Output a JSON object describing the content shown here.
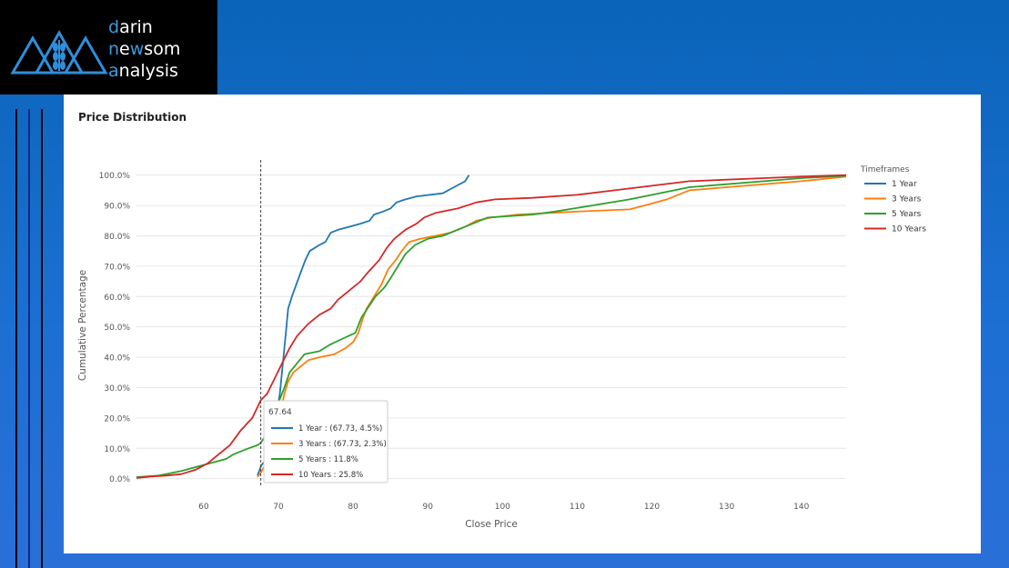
{
  "logo": {
    "lines": [
      {
        "first": "d",
        "rest": "arin"
      },
      {
        "first": "n",
        "rest": "e",
        "mid": "w",
        "tail": "som"
      },
      {
        "first": "a",
        "rest": "nalysis"
      }
    ]
  },
  "card_title": "Price Distribution",
  "chart_data": {
    "type": "line",
    "title": "Price Distribution",
    "xlabel": "Close Price",
    "ylabel": "Cumulative Percentage",
    "xlim": [
      51,
      146
    ],
    "ylim": [
      -1,
      102
    ],
    "x_ticks": [
      60,
      70,
      80,
      90,
      100,
      110,
      120,
      130,
      140
    ],
    "y_ticks": [
      0,
      10,
      20,
      30,
      40,
      50,
      60,
      70,
      80,
      90,
      100
    ],
    "y_tick_labels": [
      "0.0%",
      "10.0%",
      "20.0%",
      "30.0%",
      "40.0%",
      "50.0%",
      "60.0%",
      "70.0%",
      "80.0%",
      "90.0%",
      "100.0%"
    ],
    "grid": true,
    "legend": {
      "title": "Timeframes",
      "position": "right"
    },
    "hover_line_x": 67.64,
    "series": [
      {
        "name": "1 Year",
        "color": "#1f77b4",
        "points": [
          [
            67.2,
            1
          ],
          [
            67.73,
            4.5
          ],
          [
            68.3,
            6
          ],
          [
            68.8,
            10
          ],
          [
            69.3,
            16
          ],
          [
            69.8,
            22
          ],
          [
            70.2,
            28
          ],
          [
            70.6,
            38
          ],
          [
            71.0,
            48
          ],
          [
            71.3,
            56
          ],
          [
            71.8,
            60
          ],
          [
            72.4,
            64
          ],
          [
            73.0,
            68
          ],
          [
            73.6,
            72
          ],
          [
            74.2,
            75
          ],
          [
            75.5,
            77
          ],
          [
            76.3,
            78
          ],
          [
            77.0,
            81
          ],
          [
            78.0,
            82
          ],
          [
            79.5,
            83
          ],
          [
            81.0,
            84
          ],
          [
            82.2,
            85
          ],
          [
            82.8,
            87
          ],
          [
            84.0,
            88
          ],
          [
            85.0,
            89
          ],
          [
            85.8,
            91
          ],
          [
            87.0,
            92
          ],
          [
            88.5,
            93
          ],
          [
            92.0,
            94
          ],
          [
            93.5,
            96
          ],
          [
            95.0,
            98
          ],
          [
            95.5,
            100
          ]
        ]
      },
      {
        "name": "3 Years",
        "color": "#ff7f0e",
        "points": [
          [
            67.2,
            0.5
          ],
          [
            67.73,
            2.3
          ],
          [
            68.3,
            5
          ],
          [
            69.0,
            10
          ],
          [
            69.8,
            15
          ],
          [
            70.3,
            22
          ],
          [
            70.8,
            28
          ],
          [
            71.3,
            32
          ],
          [
            72.0,
            35
          ],
          [
            73.0,
            37
          ],
          [
            74.0,
            39
          ],
          [
            75.5,
            40
          ],
          [
            77.5,
            41
          ],
          [
            79.0,
            43
          ],
          [
            80.0,
            45
          ],
          [
            80.7,
            48
          ],
          [
            81.2,
            52
          ],
          [
            81.8,
            56
          ],
          [
            82.8,
            60
          ],
          [
            83.8,
            64
          ],
          [
            84.7,
            69
          ],
          [
            85.7,
            72
          ],
          [
            86.5,
            75
          ],
          [
            87.5,
            78
          ],
          [
            89.0,
            79
          ],
          [
            91.0,
            80
          ],
          [
            93.0,
            81
          ],
          [
            95.0,
            83
          ],
          [
            96.5,
            85
          ],
          [
            98.5,
            86
          ],
          [
            102,
            87
          ],
          [
            110,
            88
          ],
          [
            117,
            88.7
          ],
          [
            119,
            90
          ],
          [
            122,
            92
          ],
          [
            125,
            95
          ],
          [
            130,
            96
          ],
          [
            135,
            97
          ],
          [
            140,
            98
          ],
          [
            146,
            99.5
          ]
        ]
      },
      {
        "name": "5 Years",
        "color": "#2ca02c",
        "points": [
          [
            51,
            0.5
          ],
          [
            54,
            1
          ],
          [
            57,
            2.5
          ],
          [
            60,
            4.5
          ],
          [
            63,
            6.5
          ],
          [
            64,
            8
          ],
          [
            66,
            10
          ],
          [
            67.2,
            11
          ],
          [
            67.64,
            11.8
          ],
          [
            68.5,
            15
          ],
          [
            69.3,
            20
          ],
          [
            70.0,
            25
          ],
          [
            70.8,
            30
          ],
          [
            71.5,
            35
          ],
          [
            72.5,
            38
          ],
          [
            73.5,
            41
          ],
          [
            75.5,
            42
          ],
          [
            76.8,
            44
          ],
          [
            78.5,
            46
          ],
          [
            80.3,
            48
          ],
          [
            81.1,
            53
          ],
          [
            81.9,
            56
          ],
          [
            83.0,
            60
          ],
          [
            84.2,
            63
          ],
          [
            85.0,
            66
          ],
          [
            86.0,
            70
          ],
          [
            87.0,
            74
          ],
          [
            88.3,
            77
          ],
          [
            90.0,
            79
          ],
          [
            92.0,
            80
          ],
          [
            94.0,
            82
          ],
          [
            96.0,
            84
          ],
          [
            98.0,
            86
          ],
          [
            104,
            87
          ],
          [
            107,
            88
          ],
          [
            112,
            90
          ],
          [
            117,
            92
          ],
          [
            121,
            94
          ],
          [
            125,
            96
          ],
          [
            130,
            97
          ],
          [
            135,
            98
          ],
          [
            140,
            99
          ],
          [
            146,
            99.8
          ]
        ]
      },
      {
        "name": "10 Years",
        "color": "#d62728",
        "points": [
          [
            51,
            0.2
          ],
          [
            53,
            0.7
          ],
          [
            55,
            1
          ],
          [
            57,
            1.5
          ],
          [
            59,
            3
          ],
          [
            60.5,
            5
          ],
          [
            62,
            8
          ],
          [
            63.5,
            11
          ],
          [
            65,
            16
          ],
          [
            66.5,
            20
          ],
          [
            67.64,
            25.8
          ],
          [
            68.5,
            28
          ],
          [
            69.5,
            33
          ],
          [
            70.5,
            38
          ],
          [
            71.5,
            43
          ],
          [
            72.5,
            47
          ],
          [
            74.0,
            51
          ],
          [
            75.5,
            54
          ],
          [
            77.0,
            56
          ],
          [
            78.0,
            59
          ],
          [
            79.5,
            62
          ],
          [
            81.0,
            65
          ],
          [
            82.0,
            68
          ],
          [
            83.5,
            72
          ],
          [
            84.5,
            76
          ],
          [
            85.5,
            79
          ],
          [
            87.0,
            82
          ],
          [
            88.5,
            84
          ],
          [
            89.5,
            86
          ],
          [
            91.0,
            87.5
          ],
          [
            94.0,
            89
          ],
          [
            96.5,
            91
          ],
          [
            99.0,
            92
          ],
          [
            104,
            92.5
          ],
          [
            110,
            93.5
          ],
          [
            115,
            95
          ],
          [
            120,
            96.5
          ],
          [
            125,
            98
          ],
          [
            130,
            98.5
          ],
          [
            135,
            99
          ],
          [
            140,
            99.5
          ],
          [
            146,
            100
          ]
        ]
      }
    ]
  },
  "tooltip": {
    "header": "67.64",
    "rows": [
      {
        "text": "1 Year : (67.73, 4.5%)",
        "color": "#1f77b4"
      },
      {
        "text": "3 Years : (67.73, 2.3%)",
        "color": "#ff7f0e"
      },
      {
        "text": "5 Years : 11.8%",
        "color": "#2ca02c"
      },
      {
        "text": "10 Years : 25.8%",
        "color": "#d62728"
      }
    ]
  }
}
